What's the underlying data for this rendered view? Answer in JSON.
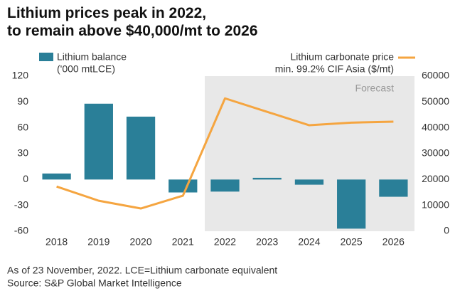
{
  "chart_data": {
    "type": "bar_line",
    "title": [
      "Lithium prices peak in 2022,",
      "to remain above $40,000/mt to 2026"
    ],
    "categories": [
      "2018",
      "2019",
      "2020",
      "2021",
      "2022",
      "2023",
      "2024",
      "2025",
      "2026"
    ],
    "series": [
      {
        "name": "Lithium balance",
        "type": "bar",
        "color": "#2a7f98",
        "values": [
          7,
          88,
          73,
          -15,
          -14,
          2,
          -6,
          -57,
          -20
        ]
      },
      {
        "name": "Lithium carbonate price",
        "type": "line",
        "axis": "y2",
        "color": "#f5a540",
        "values": [
          17300,
          11800,
          8800,
          13750,
          51400,
          46200,
          41000,
          42000,
          42400
        ]
      }
    ],
    "ylabel": "('000 mtLCE)",
    "y2label": "min. 99.2% CIF Asia ($/mt)",
    "ylim": [
      -60,
      120
    ],
    "yticks": [
      -60,
      -30,
      0,
      30,
      60,
      90,
      120
    ],
    "y2lim": [
      0,
      60000
    ],
    "y2ticks": [
      0,
      10000,
      20000,
      30000,
      40000,
      50000,
      60000
    ],
    "forecast_label": "Forecast",
    "notes": [
      "As of 23 November, 2022. LCE=Lithium carbonate equivalent",
      "Source: S&P Global Market Intelligence"
    ]
  }
}
